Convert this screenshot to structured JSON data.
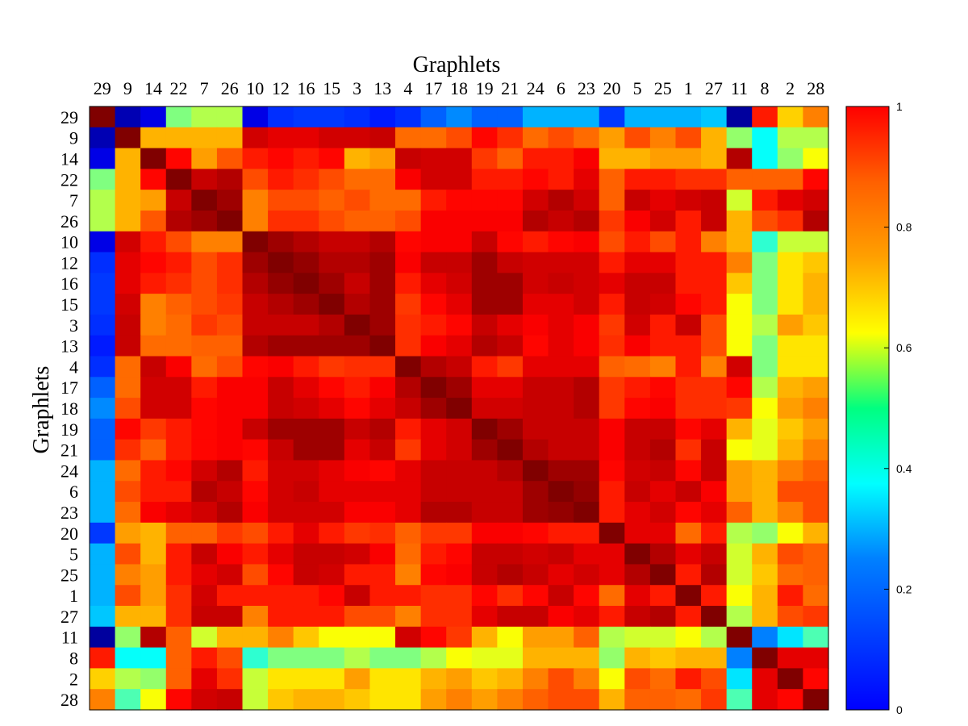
{
  "chart_data": {
    "type": "heatmap",
    "title": "Graphlets",
    "xlabel": "Graphlets",
    "ylabel": "Graphlets",
    "labels": [
      "29",
      "9",
      "14",
      "22",
      "7",
      "26",
      "10",
      "12",
      "16",
      "15",
      "3",
      "13",
      "4",
      "17",
      "18",
      "19",
      "21",
      "24",
      "6",
      "23",
      "20",
      "5",
      "25",
      "1",
      "27",
      "11",
      "8",
      "2",
      "28"
    ],
    "colorbar": {
      "min": 0,
      "max": 1,
      "ticks": [
        "0",
        "0.2",
        "0.4",
        "0.6",
        "0.8",
        "1"
      ],
      "colormap": "jet"
    },
    "values": [
      [
        1.0,
        0.05,
        0.1,
        0.5,
        0.55,
        0.55,
        0.1,
        0.17,
        0.18,
        0.18,
        0.17,
        0.15,
        0.17,
        0.22,
        0.26,
        0.22,
        0.22,
        0.3,
        0.3,
        0.3,
        0.18,
        0.3,
        0.3,
        0.3,
        0.32,
        0.03,
        0.85,
        0.67,
        0.75
      ],
      [
        0.05,
        1.0,
        0.7,
        0.7,
        0.7,
        0.7,
        0.92,
        0.9,
        0.9,
        0.92,
        0.92,
        0.93,
        0.77,
        0.77,
        0.8,
        0.87,
        0.83,
        0.77,
        0.8,
        0.77,
        0.72,
        0.8,
        0.75,
        0.8,
        0.7,
        0.52,
        0.38,
        0.55,
        0.55
      ],
      [
        0.1,
        0.7,
        1.0,
        0.87,
        0.72,
        0.79,
        0.85,
        0.87,
        0.85,
        0.87,
        0.7,
        0.72,
        0.93,
        0.92,
        0.92,
        0.82,
        0.78,
        0.85,
        0.85,
        0.88,
        0.7,
        0.7,
        0.72,
        0.72,
        0.7,
        0.95,
        0.38,
        0.52,
        0.62
      ],
      [
        0.5,
        0.7,
        0.87,
        1.0,
        0.93,
        0.95,
        0.8,
        0.85,
        0.83,
        0.8,
        0.77,
        0.77,
        0.88,
        0.92,
        0.92,
        0.85,
        0.85,
        0.87,
        0.85,
        0.9,
        0.78,
        0.85,
        0.85,
        0.83,
        0.83,
        0.78,
        0.78,
        0.78,
        0.87
      ],
      [
        0.55,
        0.7,
        0.72,
        0.93,
        1.0,
        0.97,
        0.75,
        0.8,
        0.8,
        0.78,
        0.8,
        0.77,
        0.77,
        0.85,
        0.87,
        0.87,
        0.87,
        0.92,
        0.95,
        0.92,
        0.78,
        0.93,
        0.9,
        0.92,
        0.93,
        0.58,
        0.85,
        0.9,
        0.92
      ],
      [
        0.55,
        0.7,
        0.79,
        0.95,
        0.97,
        1.0,
        0.75,
        0.83,
        0.83,
        0.8,
        0.78,
        0.78,
        0.8,
        0.88,
        0.88,
        0.88,
        0.88,
        0.95,
        0.93,
        0.95,
        0.82,
        0.88,
        0.92,
        0.85,
        0.93,
        0.7,
        0.8,
        0.83,
        0.95
      ],
      [
        0.1,
        0.92,
        0.85,
        0.8,
        0.75,
        0.75,
        1.0,
        0.97,
        0.95,
        0.93,
        0.93,
        0.95,
        0.87,
        0.88,
        0.88,
        0.93,
        0.87,
        0.85,
        0.87,
        0.88,
        0.8,
        0.85,
        0.8,
        0.85,
        0.75,
        0.7,
        0.42,
        0.57,
        0.57
      ],
      [
        0.17,
        0.9,
        0.87,
        0.85,
        0.8,
        0.83,
        0.97,
        1.0,
        0.98,
        0.95,
        0.95,
        0.97,
        0.88,
        0.93,
        0.93,
        0.97,
        0.93,
        0.92,
        0.92,
        0.92,
        0.85,
        0.9,
        0.9,
        0.85,
        0.85,
        0.75,
        0.5,
        0.65,
        0.68
      ],
      [
        0.18,
        0.9,
        0.85,
        0.83,
        0.8,
        0.83,
        0.95,
        0.98,
        1.0,
        0.97,
        0.93,
        0.97,
        0.85,
        0.9,
        0.92,
        0.97,
        0.97,
        0.92,
        0.93,
        0.92,
        0.9,
        0.93,
        0.93,
        0.85,
        0.85,
        0.68,
        0.5,
        0.65,
        0.7
      ],
      [
        0.18,
        0.92,
        0.75,
        0.78,
        0.8,
        0.82,
        0.93,
        0.95,
        0.97,
        1.0,
        0.95,
        0.97,
        0.82,
        0.87,
        0.9,
        0.97,
        0.97,
        0.9,
        0.9,
        0.92,
        0.85,
        0.93,
        0.92,
        0.87,
        0.85,
        0.62,
        0.5,
        0.65,
        0.7
      ],
      [
        0.17,
        0.93,
        0.75,
        0.77,
        0.82,
        0.8,
        0.93,
        0.93,
        0.93,
        0.95,
        1.0,
        0.97,
        0.83,
        0.85,
        0.87,
        0.93,
        0.9,
        0.88,
        0.9,
        0.88,
        0.82,
        0.92,
        0.85,
        0.93,
        0.8,
        0.62,
        0.55,
        0.72,
        0.68
      ],
      [
        0.15,
        0.93,
        0.77,
        0.77,
        0.78,
        0.78,
        0.95,
        0.97,
        0.97,
        0.97,
        0.97,
        1.0,
        0.83,
        0.88,
        0.9,
        0.95,
        0.93,
        0.87,
        0.9,
        0.88,
        0.83,
        0.88,
        0.85,
        0.85,
        0.8,
        0.62,
        0.5,
        0.65,
        0.65
      ],
      [
        0.17,
        0.77,
        0.93,
        0.88,
        0.77,
        0.8,
        0.87,
        0.88,
        0.85,
        0.82,
        0.83,
        0.83,
        1.0,
        0.95,
        0.93,
        0.85,
        0.82,
        0.9,
        0.9,
        0.9,
        0.78,
        0.77,
        0.75,
        0.85,
        0.75,
        0.92,
        0.5,
        0.65,
        0.65
      ],
      [
        0.22,
        0.77,
        0.92,
        0.92,
        0.85,
        0.88,
        0.88,
        0.93,
        0.9,
        0.87,
        0.85,
        0.88,
        0.95,
        1.0,
        0.97,
        0.9,
        0.9,
        0.93,
        0.93,
        0.95,
        0.82,
        0.85,
        0.87,
        0.83,
        0.83,
        0.87,
        0.55,
        0.7,
        0.72
      ],
      [
        0.26,
        0.8,
        0.92,
        0.92,
        0.87,
        0.88,
        0.88,
        0.93,
        0.92,
        0.9,
        0.87,
        0.9,
        0.93,
        0.97,
        1.0,
        0.92,
        0.92,
        0.93,
        0.93,
        0.95,
        0.82,
        0.87,
        0.88,
        0.83,
        0.83,
        0.82,
        0.62,
        0.72,
        0.75
      ],
      [
        0.22,
        0.87,
        0.82,
        0.85,
        0.87,
        0.88,
        0.93,
        0.97,
        0.97,
        0.97,
        0.93,
        0.95,
        0.85,
        0.9,
        0.92,
        1.0,
        0.97,
        0.93,
        0.93,
        0.93,
        0.88,
        0.93,
        0.93,
        0.87,
        0.9,
        0.7,
        0.6,
        0.68,
        0.72
      ],
      [
        0.22,
        0.83,
        0.78,
        0.85,
        0.87,
        0.88,
        0.87,
        0.93,
        0.97,
        0.97,
        0.9,
        0.93,
        0.82,
        0.9,
        0.92,
        0.97,
        1.0,
        0.95,
        0.93,
        0.93,
        0.88,
        0.93,
        0.95,
        0.83,
        0.93,
        0.62,
        0.6,
        0.7,
        0.75
      ],
      [
        0.3,
        0.77,
        0.85,
        0.87,
        0.92,
        0.95,
        0.85,
        0.92,
        0.92,
        0.9,
        0.88,
        0.87,
        0.9,
        0.93,
        0.93,
        0.93,
        0.95,
        1.0,
        0.97,
        0.97,
        0.87,
        0.92,
        0.93,
        0.87,
        0.93,
        0.72,
        0.7,
        0.75,
        0.78
      ],
      [
        0.3,
        0.8,
        0.85,
        0.85,
        0.95,
        0.93,
        0.87,
        0.92,
        0.93,
        0.9,
        0.9,
        0.9,
        0.9,
        0.93,
        0.93,
        0.93,
        0.93,
        0.97,
        1.0,
        0.98,
        0.85,
        0.93,
        0.9,
        0.93,
        0.88,
        0.72,
        0.7,
        0.8,
        0.8
      ],
      [
        0.3,
        0.77,
        0.88,
        0.9,
        0.92,
        0.95,
        0.88,
        0.92,
        0.92,
        0.92,
        0.88,
        0.88,
        0.9,
        0.95,
        0.95,
        0.93,
        0.93,
        0.97,
        0.98,
        1.0,
        0.85,
        0.9,
        0.92,
        0.87,
        0.9,
        0.78,
        0.7,
        0.75,
        0.8
      ],
      [
        0.18,
        0.72,
        0.7,
        0.78,
        0.78,
        0.82,
        0.8,
        0.85,
        0.9,
        0.85,
        0.82,
        0.83,
        0.78,
        0.82,
        0.82,
        0.88,
        0.88,
        0.87,
        0.85,
        0.85,
        1.0,
        0.9,
        0.9,
        0.77,
        0.85,
        0.55,
        0.52,
        0.62,
        0.7
      ],
      [
        0.3,
        0.8,
        0.7,
        0.85,
        0.93,
        0.88,
        0.85,
        0.9,
        0.93,
        0.93,
        0.92,
        0.88,
        0.77,
        0.85,
        0.87,
        0.93,
        0.93,
        0.92,
        0.93,
        0.9,
        0.9,
        1.0,
        0.95,
        0.9,
        0.93,
        0.58,
        0.7,
        0.8,
        0.78
      ],
      [
        0.3,
        0.75,
        0.72,
        0.85,
        0.9,
        0.92,
        0.8,
        0.87,
        0.93,
        0.92,
        0.85,
        0.85,
        0.75,
        0.87,
        0.88,
        0.93,
        0.95,
        0.93,
        0.9,
        0.92,
        0.9,
        0.95,
        1.0,
        0.85,
        0.95,
        0.58,
        0.68,
        0.77,
        0.78
      ],
      [
        0.3,
        0.8,
        0.72,
        0.83,
        0.92,
        0.85,
        0.85,
        0.85,
        0.85,
        0.87,
        0.93,
        0.85,
        0.85,
        0.83,
        0.83,
        0.87,
        0.83,
        0.87,
        0.93,
        0.87,
        0.77,
        0.9,
        0.85,
        1.0,
        0.85,
        0.62,
        0.7,
        0.85,
        0.77
      ],
      [
        0.32,
        0.7,
        0.7,
        0.83,
        0.93,
        0.93,
        0.75,
        0.85,
        0.85,
        0.85,
        0.8,
        0.8,
        0.75,
        0.83,
        0.83,
        0.9,
        0.93,
        0.93,
        0.88,
        0.9,
        0.85,
        0.93,
        0.95,
        0.85,
        1.0,
        0.55,
        0.7,
        0.8,
        0.82
      ],
      [
        0.03,
        0.52,
        0.95,
        0.78,
        0.58,
        0.7,
        0.7,
        0.75,
        0.68,
        0.62,
        0.62,
        0.62,
        0.92,
        0.87,
        0.82,
        0.7,
        0.62,
        0.72,
        0.72,
        0.78,
        0.55,
        0.58,
        0.58,
        0.62,
        0.55,
        1.0,
        0.25,
        0.35,
        0.45
      ],
      [
        0.85,
        0.38,
        0.38,
        0.78,
        0.85,
        0.8,
        0.42,
        0.5,
        0.5,
        0.5,
        0.55,
        0.5,
        0.5,
        0.55,
        0.62,
        0.6,
        0.6,
        0.7,
        0.7,
        0.7,
        0.52,
        0.7,
        0.68,
        0.7,
        0.7,
        0.25,
        1.0,
        0.9,
        0.9
      ],
      [
        0.67,
        0.55,
        0.52,
        0.78,
        0.9,
        0.83,
        0.57,
        0.65,
        0.65,
        0.65,
        0.72,
        0.65,
        0.65,
        0.7,
        0.72,
        0.68,
        0.7,
        0.75,
        0.8,
        0.75,
        0.62,
        0.8,
        0.77,
        0.85,
        0.8,
        0.35,
        0.9,
        1.0,
        0.87
      ],
      [
        0.75,
        0.45,
        0.62,
        0.87,
        0.92,
        0.93,
        0.57,
        0.68,
        0.7,
        0.7,
        0.68,
        0.65,
        0.65,
        0.72,
        0.75,
        0.72,
        0.75,
        0.78,
        0.8,
        0.8,
        0.7,
        0.78,
        0.78,
        0.77,
        0.82,
        0.45,
        0.9,
        0.87,
        1.0
      ]
    ]
  }
}
